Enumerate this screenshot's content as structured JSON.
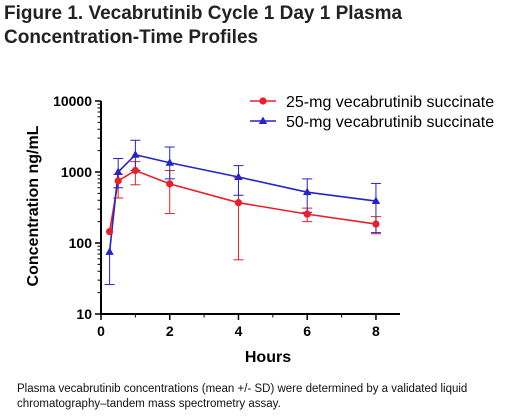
{
  "chart_data": {
    "type": "line",
    "title_lines": [
      "Figure 1. Vecabrutinib Cycle 1 Day 1 Plasma",
      "Concentration-Time Profiles"
    ],
    "xlabel": "Hours",
    "ylabel": "Concentration ng/mL",
    "yscale": "log",
    "xlim": [
      0,
      8.7
    ],
    "ylim": [
      10,
      10000
    ],
    "x_ticks": [
      0,
      2,
      4,
      6,
      8
    ],
    "y_ticks": [
      10,
      100,
      1000,
      10000
    ],
    "legend_position": "top-right",
    "series": [
      {
        "name": "25-mg vecabrutinib succinate",
        "color": "#e8202a",
        "marker": "circle",
        "x": [
          0.25,
          0.5,
          1,
          2,
          4,
          6,
          8
        ],
        "y": [
          145,
          750,
          1050,
          680,
          370,
          255,
          185
        ],
        "err_low": [
          0,
          430,
          660,
          260,
          58,
          200,
          135
        ],
        "err_high": [
          0,
          930,
          1400,
          1050,
          830,
          310,
          235
        ]
      },
      {
        "name": "50-mg vecabrutinib succinate",
        "color": "#2424c8",
        "marker": "triangle",
        "x": [
          0.25,
          0.5,
          1,
          2,
          4,
          6,
          8
        ],
        "y": [
          75,
          1000,
          1750,
          1350,
          850,
          520,
          390
        ],
        "err_low": [
          26,
          600,
          1050,
          800,
          470,
          270,
          140
        ],
        "err_high": [
          0,
          1550,
          2800,
          2250,
          1230,
          800,
          690
        ]
      }
    ]
  },
  "caption": "Plasma vecabrutinib concentrations (mean +/- SD) were determined by a validated liquid chromatography–tandem mass spectrometry assay."
}
